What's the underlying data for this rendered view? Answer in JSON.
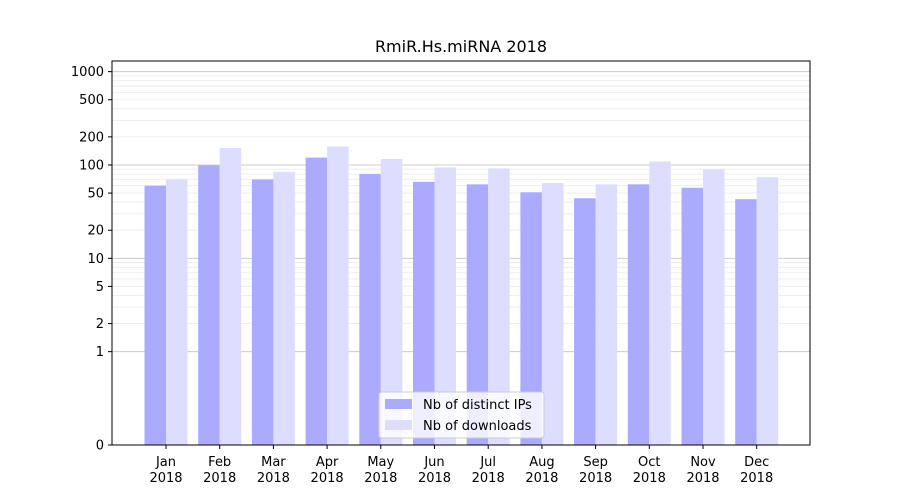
{
  "chart_data": {
    "type": "bar",
    "title": "RmiR.Hs.miRNA 2018",
    "xlabel": "",
    "ylabel": "",
    "y_scale": "symlog",
    "y_ticks": [
      0,
      1,
      2,
      5,
      10,
      20,
      50,
      100,
      200,
      500,
      1000
    ],
    "y_tick_labels": [
      "0",
      "1",
      "2",
      "5",
      "10",
      "20",
      "50",
      "100",
      "200",
      "500",
      "1000"
    ],
    "grid": true,
    "legend_position": "lower center",
    "categories": [
      [
        "Jan",
        "2018"
      ],
      [
        "Feb",
        "2018"
      ],
      [
        "Mar",
        "2018"
      ],
      [
        "Apr",
        "2018"
      ],
      [
        "May",
        "2018"
      ],
      [
        "Jun",
        "2018"
      ],
      [
        "Jul",
        "2018"
      ],
      [
        "Aug",
        "2018"
      ],
      [
        "Sep",
        "2018"
      ],
      [
        "Oct",
        "2018"
      ],
      [
        "Nov",
        "2018"
      ],
      [
        "Dec",
        "2018"
      ]
    ],
    "series": [
      {
        "name": "Nb of distinct IPs",
        "color": "#aaaaff",
        "values": [
          60,
          99,
          70,
          120,
          80,
          66,
          62,
          51,
          44,
          62,
          57,
          43
        ]
      },
      {
        "name": "Nb of downloads",
        "color": "#ddddff",
        "values": [
          70,
          152,
          84,
          158,
          116,
          94,
          92,
          64,
          62,
          109,
          90,
          74
        ]
      }
    ]
  }
}
